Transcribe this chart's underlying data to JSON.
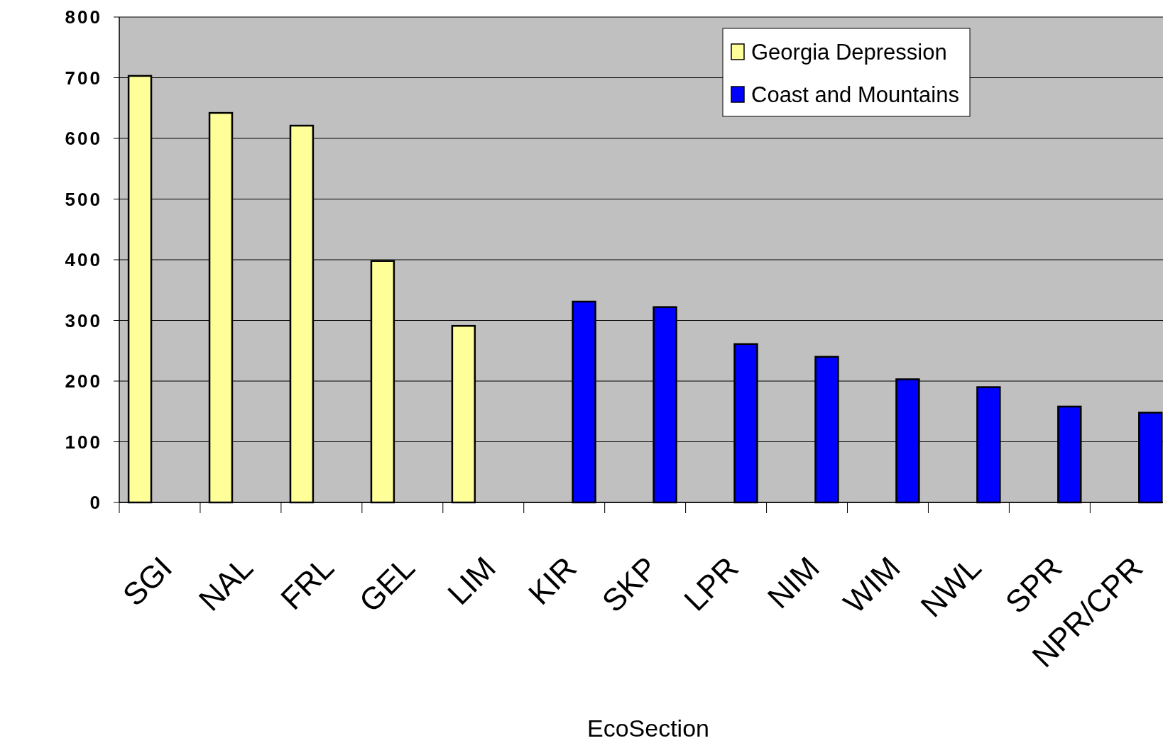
{
  "chart_data": {
    "type": "bar",
    "xlabel": "EcoSection",
    "categories": [
      "SGI",
      "NAL",
      "FRL",
      "GEL",
      "LIM",
      "KIR",
      "SKP",
      "LPR",
      "NIM",
      "WIM",
      "NWL",
      "SPR",
      "NPR/CPR"
    ],
    "series": [
      {
        "name": "Georgia Depression",
        "color": "#ffff99",
        "values": [
          703,
          642,
          621,
          398,
          291,
          null,
          null,
          null,
          null,
          null,
          null,
          null,
          null
        ]
      },
      {
        "name": "Coast and Mountains",
        "color": "#0000ff",
        "values": [
          null,
          null,
          null,
          null,
          null,
          331,
          322,
          261,
          240,
          203,
          190,
          158,
          148
        ]
      }
    ],
    "ylim": [
      0,
      800
    ],
    "yticks": [
      0,
      100,
      200,
      300,
      400,
      500,
      600,
      700,
      800
    ],
    "grid": "y",
    "legend": "top right"
  }
}
